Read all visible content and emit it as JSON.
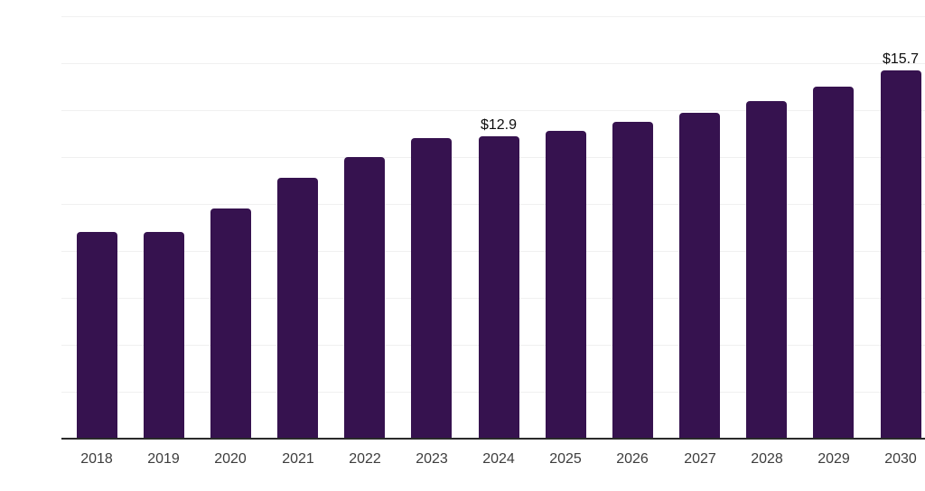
{
  "chart_data": {
    "type": "bar",
    "title": "",
    "xlabel": "",
    "ylabel": "",
    "categories": [
      "2018",
      "2019",
      "2020",
      "2021",
      "2022",
      "2023",
      "2024",
      "2025",
      "2026",
      "2027",
      "2028",
      "2029",
      "2030"
    ],
    "values": [
      8.8,
      8.8,
      9.8,
      11.1,
      12.0,
      12.8,
      12.9,
      13.1,
      13.5,
      13.9,
      14.4,
      15.0,
      15.7
    ],
    "unit_prefix": "$",
    "data_labels": [
      {
        "category": "2024",
        "text": "$12.9"
      },
      {
        "category": "2030",
        "text": "$15.7"
      }
    ],
    "ylim": [
      0,
      18
    ],
    "grid": "horizontal",
    "grid_interval": 2,
    "y_tick_labels_shown": false,
    "legend": "none"
  },
  "colors": {
    "bar": "#36124F",
    "grid": "#f0f0f0",
    "axis": "#2a2a2a",
    "tick_label": "#3d3d3d",
    "data_label": "#0d0d0d",
    "background": "#ffffff"
  }
}
